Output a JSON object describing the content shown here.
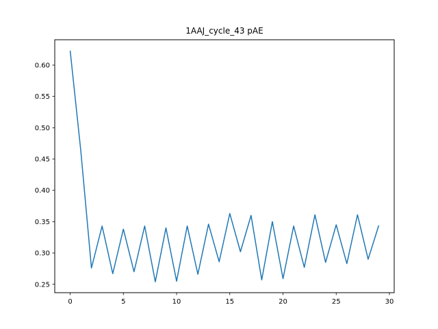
{
  "chart_data": {
    "type": "line",
    "title": "1AAJ_cycle_43 pAE",
    "xlabel": "",
    "ylabel": "",
    "xlim": [
      -1.45,
      30.45
    ],
    "ylim": [
      0.2366,
      0.6405
    ],
    "x_ticks": [
      0,
      5,
      10,
      15,
      20,
      25,
      30
    ],
    "y_ticks": [
      0.25,
      0.3,
      0.35,
      0.4,
      0.45,
      0.5,
      0.55,
      0.6
    ],
    "grid": false,
    "series": [
      {
        "color": "#1f77b4",
        "x": [
          0,
          1,
          2,
          3,
          4,
          5,
          6,
          7,
          8,
          9,
          10,
          11,
          12,
          13,
          14,
          15,
          16,
          17,
          18,
          19,
          20,
          21,
          22,
          23,
          24,
          25,
          26,
          27,
          28,
          29
        ],
        "values": [
          0.623,
          0.463,
          0.276,
          0.343,
          0.267,
          0.338,
          0.27,
          0.343,
          0.254,
          0.34,
          0.255,
          0.343,
          0.266,
          0.346,
          0.286,
          0.363,
          0.302,
          0.36,
          0.257,
          0.35,
          0.259,
          0.343,
          0.277,
          0.361,
          0.285,
          0.345,
          0.283,
          0.361,
          0.29,
          0.344
        ]
      }
    ]
  }
}
